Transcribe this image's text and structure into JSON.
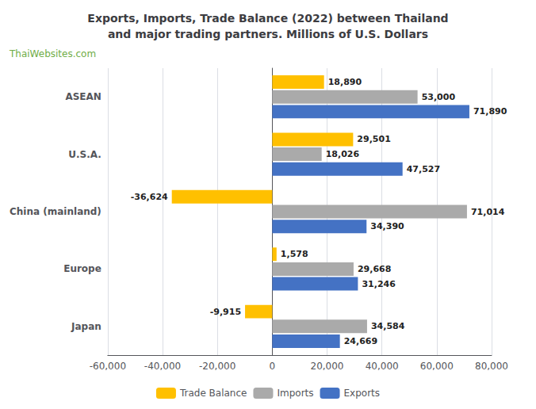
{
  "chart_data": {
    "type": "bar",
    "orientation": "horizontal",
    "title": "Exports, Imports, Trade Balance (2022) between Thailand\nand major trading partners. Millions of U.S. Dollars",
    "annotations": [
      {
        "text": "ThaiWebsites.com",
        "color": "#70AD47"
      }
    ],
    "categories": [
      "ASEAN",
      "U.S.A.",
      "China (mainland)",
      "Europe",
      "Japan"
    ],
    "series": [
      {
        "name": "Trade Balance",
        "color": "#FFC000",
        "values": [
          18890,
          29501,
          -36624,
          1578,
          -9915
        ],
        "value_labels": [
          "18,890",
          "29,501",
          "-36,624",
          "1,578",
          "-9,915"
        ]
      },
      {
        "name": "Imports",
        "color": "#AAAAAA",
        "values": [
          53000,
          18026,
          71014,
          29668,
          34584
        ],
        "value_labels": [
          "53,000",
          "18,026",
          "71,014",
          "29,668",
          "34,584"
        ]
      },
      {
        "name": "Exports",
        "color": "#4472C4",
        "values": [
          71890,
          47527,
          34390,
          31246,
          24669
        ],
        "value_labels": [
          "71,890",
          "47,527",
          "34,390",
          "31,246",
          "24,669"
        ]
      }
    ],
    "xlim": [
      -60000,
      80000
    ],
    "xticks": [
      {
        "value": -60000,
        "label": "-60,000"
      },
      {
        "value": -40000,
        "label": "-40,000"
      },
      {
        "value": -20000,
        "label": "-20,000"
      },
      0,
      {
        "value": 20000,
        "label": "20,000"
      },
      {
        "value": 40000,
        "label": "40,000"
      },
      {
        "value": 60000,
        "label": "60,000"
      },
      {
        "value": 80000,
        "label": "80,000"
      }
    ],
    "grid": true,
    "legend": "bottom",
    "data_labels": true
  }
}
